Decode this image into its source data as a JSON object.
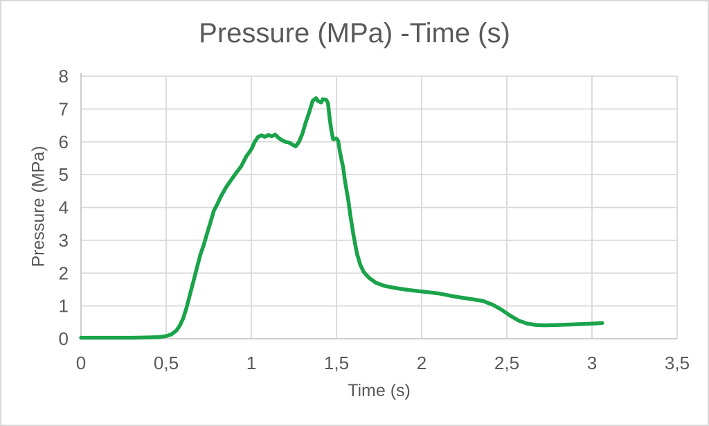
{
  "chart_data": {
    "type": "line",
    "title": "Pressure (MPa) -Time (s)",
    "legend": false,
    "grid": true,
    "x_axis": {
      "title": "Time (s)",
      "min": 0,
      "max": 3.5,
      "tick_values": [
        0,
        0.5,
        1,
        1.5,
        2,
        2.5,
        3,
        3.5
      ],
      "tick_labels": [
        "0",
        "0,5",
        "1",
        "1,5",
        "2",
        "2,5",
        "3",
        "3,5"
      ]
    },
    "y_axis": {
      "title": "Pressure (MPa)",
      "min": 0,
      "max": 8,
      "tick_values": [
        0,
        1,
        2,
        3,
        4,
        5,
        6,
        7,
        8
      ],
      "tick_labels": [
        "0",
        "1",
        "2",
        "3",
        "4",
        "5",
        "6",
        "7",
        "8"
      ]
    },
    "series": [
      {
        "name": "Pressure",
        "color": "#1AA34A",
        "points": [
          [
            0.0,
            0.03
          ],
          [
            0.1,
            0.03
          ],
          [
            0.2,
            0.03
          ],
          [
            0.3,
            0.03
          ],
          [
            0.4,
            0.04
          ],
          [
            0.46,
            0.05
          ],
          [
            0.5,
            0.08
          ],
          [
            0.53,
            0.13
          ],
          [
            0.56,
            0.25
          ],
          [
            0.58,
            0.4
          ],
          [
            0.6,
            0.62
          ],
          [
            0.62,
            0.95
          ],
          [
            0.64,
            1.35
          ],
          [
            0.66,
            1.75
          ],
          [
            0.68,
            2.15
          ],
          [
            0.7,
            2.55
          ],
          [
            0.72,
            2.85
          ],
          [
            0.74,
            3.2
          ],
          [
            0.76,
            3.55
          ],
          [
            0.78,
            3.9
          ],
          [
            0.8,
            4.1
          ],
          [
            0.82,
            4.32
          ],
          [
            0.85,
            4.6
          ],
          [
            0.88,
            4.83
          ],
          [
            0.91,
            5.05
          ],
          [
            0.94,
            5.25
          ],
          [
            0.97,
            5.55
          ],
          [
            1.0,
            5.77
          ],
          [
            1.02,
            6.0
          ],
          [
            1.04,
            6.15
          ],
          [
            1.06,
            6.2
          ],
          [
            1.08,
            6.15
          ],
          [
            1.1,
            6.21
          ],
          [
            1.12,
            6.17
          ],
          [
            1.14,
            6.22
          ],
          [
            1.16,
            6.12
          ],
          [
            1.18,
            6.05
          ],
          [
            1.2,
            6.0
          ],
          [
            1.22,
            5.98
          ],
          [
            1.24,
            5.92
          ],
          [
            1.26,
            5.86
          ],
          [
            1.28,
            6.0
          ],
          [
            1.3,
            6.25
          ],
          [
            1.32,
            6.6
          ],
          [
            1.34,
            6.9
          ],
          [
            1.36,
            7.25
          ],
          [
            1.38,
            7.33
          ],
          [
            1.39,
            7.25
          ],
          [
            1.41,
            7.2
          ],
          [
            1.42,
            7.3
          ],
          [
            1.44,
            7.28
          ],
          [
            1.45,
            7.18
          ],
          [
            1.46,
            6.7
          ],
          [
            1.47,
            6.35
          ],
          [
            1.48,
            6.08
          ],
          [
            1.5,
            6.1
          ],
          [
            1.51,
            6.02
          ],
          [
            1.52,
            5.7
          ],
          [
            1.54,
            5.2
          ],
          [
            1.55,
            4.8
          ],
          [
            1.57,
            4.2
          ],
          [
            1.58,
            3.8
          ],
          [
            1.6,
            3.15
          ],
          [
            1.62,
            2.6
          ],
          [
            1.64,
            2.25
          ],
          [
            1.66,
            2.03
          ],
          [
            1.69,
            1.86
          ],
          [
            1.73,
            1.71
          ],
          [
            1.78,
            1.61
          ],
          [
            1.85,
            1.54
          ],
          [
            1.93,
            1.48
          ],
          [
            2.0,
            1.44
          ],
          [
            2.1,
            1.38
          ],
          [
            2.2,
            1.28
          ],
          [
            2.3,
            1.2
          ],
          [
            2.36,
            1.15
          ],
          [
            2.42,
            1.03
          ],
          [
            2.47,
            0.88
          ],
          [
            2.52,
            0.7
          ],
          [
            2.57,
            0.55
          ],
          [
            2.62,
            0.46
          ],
          [
            2.67,
            0.42
          ],
          [
            2.72,
            0.41
          ],
          [
            2.8,
            0.42
          ],
          [
            2.9,
            0.44
          ],
          [
            3.0,
            0.46
          ],
          [
            3.06,
            0.48
          ]
        ]
      }
    ]
  },
  "colors": {
    "series_green": "#1AA34A",
    "gridline": "#D9D9D9",
    "axis_line": "#C6C6C6",
    "text": "#595959",
    "background": "#FFFFFF",
    "border": "#D9D9D9"
  }
}
